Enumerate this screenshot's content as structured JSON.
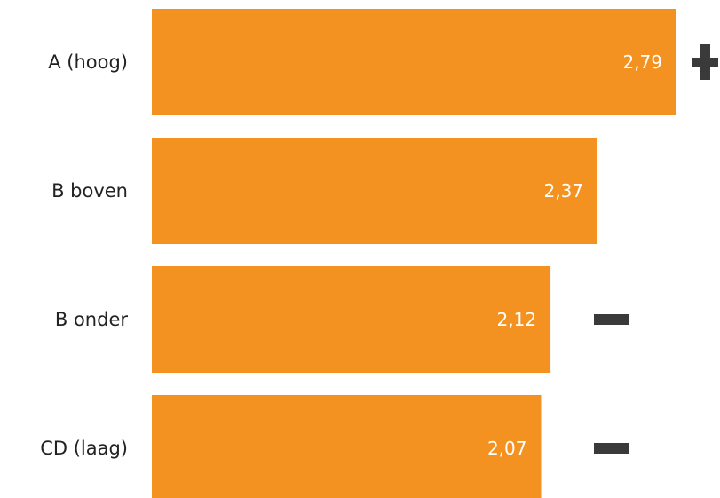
{
  "chart_data": {
    "type": "bar",
    "orientation": "horizontal",
    "categories": [
      "A (hoog)",
      "B boven",
      "B onder",
      "CD (laag)"
    ],
    "values": [
      2.79,
      2.37,
      2.12,
      2.07
    ],
    "value_labels": [
      "2,79",
      "2,37",
      "2,12",
      "2,07"
    ],
    "markers": [
      "plus",
      "none",
      "minus",
      "minus"
    ],
    "xlim": [
      0,
      2.79
    ],
    "grid": false,
    "legend": "none",
    "title": "",
    "xlabel": "",
    "ylabel": ""
  },
  "colors": {
    "bar": "#f39220",
    "marker": "#3a3a3a",
    "value_text": "#ffffff",
    "category_text": "#222222"
  }
}
